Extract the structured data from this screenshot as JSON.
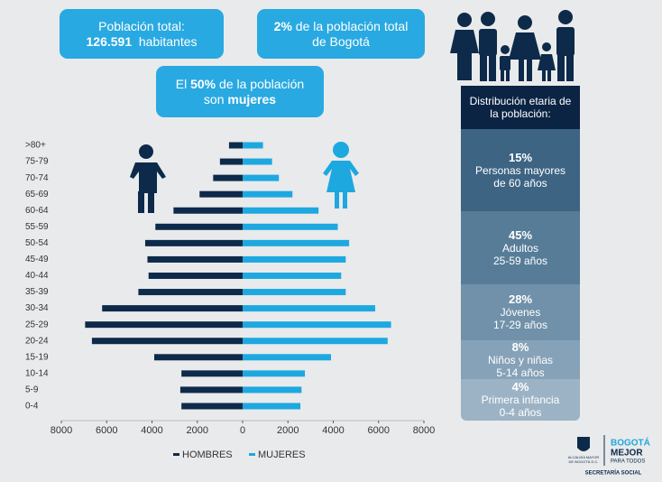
{
  "callouts": {
    "total_population": {
      "label": "Población total:",
      "value": "126.591",
      "unit": "habitantes"
    },
    "share": {
      "value": "2%",
      "rest_line1": "de la población total",
      "rest_line2": "de Bogotá"
    },
    "women": {
      "prefix": "El",
      "value": "50%",
      "middle": "de la población",
      "line2_prefix": "son",
      "line2_bold": "mujeres"
    }
  },
  "chart_data": {
    "type": "pyramid",
    "categories": [
      ">80+",
      "75-79",
      "70-74",
      "65-69",
      "60-64",
      "55-59",
      "50-54",
      "45-49",
      "40-44",
      "35-39",
      "30-34",
      "25-29",
      "20-24",
      "15-19",
      "10-14",
      "5-9",
      "0-4"
    ],
    "series": [
      {
        "name": "HOMBRES",
        "color": "#0d2a4a",
        "values": [
          -600,
          -1000,
          -1300,
          -1900,
          -3050,
          -3850,
          -4300,
          -4200,
          -4150,
          -4600,
          -6200,
          -6950,
          -6650,
          -3900,
          -2700,
          -2750,
          -2700
        ]
      },
      {
        "name": "MUJERES",
        "color": "#1ea8e0",
        "values": [
          900,
          1300,
          1600,
          2200,
          3350,
          4200,
          4700,
          4550,
          4350,
          4550,
          5850,
          6550,
          6400,
          3900,
          2750,
          2600,
          2550
        ]
      }
    ],
    "xlim": [
      -8000,
      8000
    ],
    "xticks": [
      {
        "value": -8000,
        "label": "8000"
      },
      {
        "value": -6000,
        "label": "6000"
      },
      {
        "value": -4000,
        "label": "4000"
      },
      {
        "value": -2000,
        "label": "2000"
      },
      0,
      2000,
      4000,
      6000,
      8000
    ]
  },
  "age_distribution": {
    "title_line1": "Distribución etaria de",
    "title_line2": "la población:",
    "groups": [
      {
        "percent": "15%",
        "line1": "Personas mayores",
        "line2": "de 60 años"
      },
      {
        "percent": "45%",
        "line1": "Adultos",
        "line2": "25-59 años"
      },
      {
        "percent": "28%",
        "line1": "Jóvenes",
        "line2": "17-29 años"
      },
      {
        "percent": "8%",
        "line1": "Niños y niñas",
        "line2": "5-14 años"
      },
      {
        "percent": "4%",
        "line1": "Primera infancia",
        "line2": "0-4 años"
      }
    ]
  },
  "logo": {
    "mayor_line1": "ALCALDÍA MAYOR",
    "mayor_line2": "DE BOGOTÁ D.C.",
    "brand1": "BOGOTÁ",
    "brand2": "MEJOR",
    "brand3": "PARA TODOS",
    "agency": "SECRETARÍA SOCIAL"
  }
}
